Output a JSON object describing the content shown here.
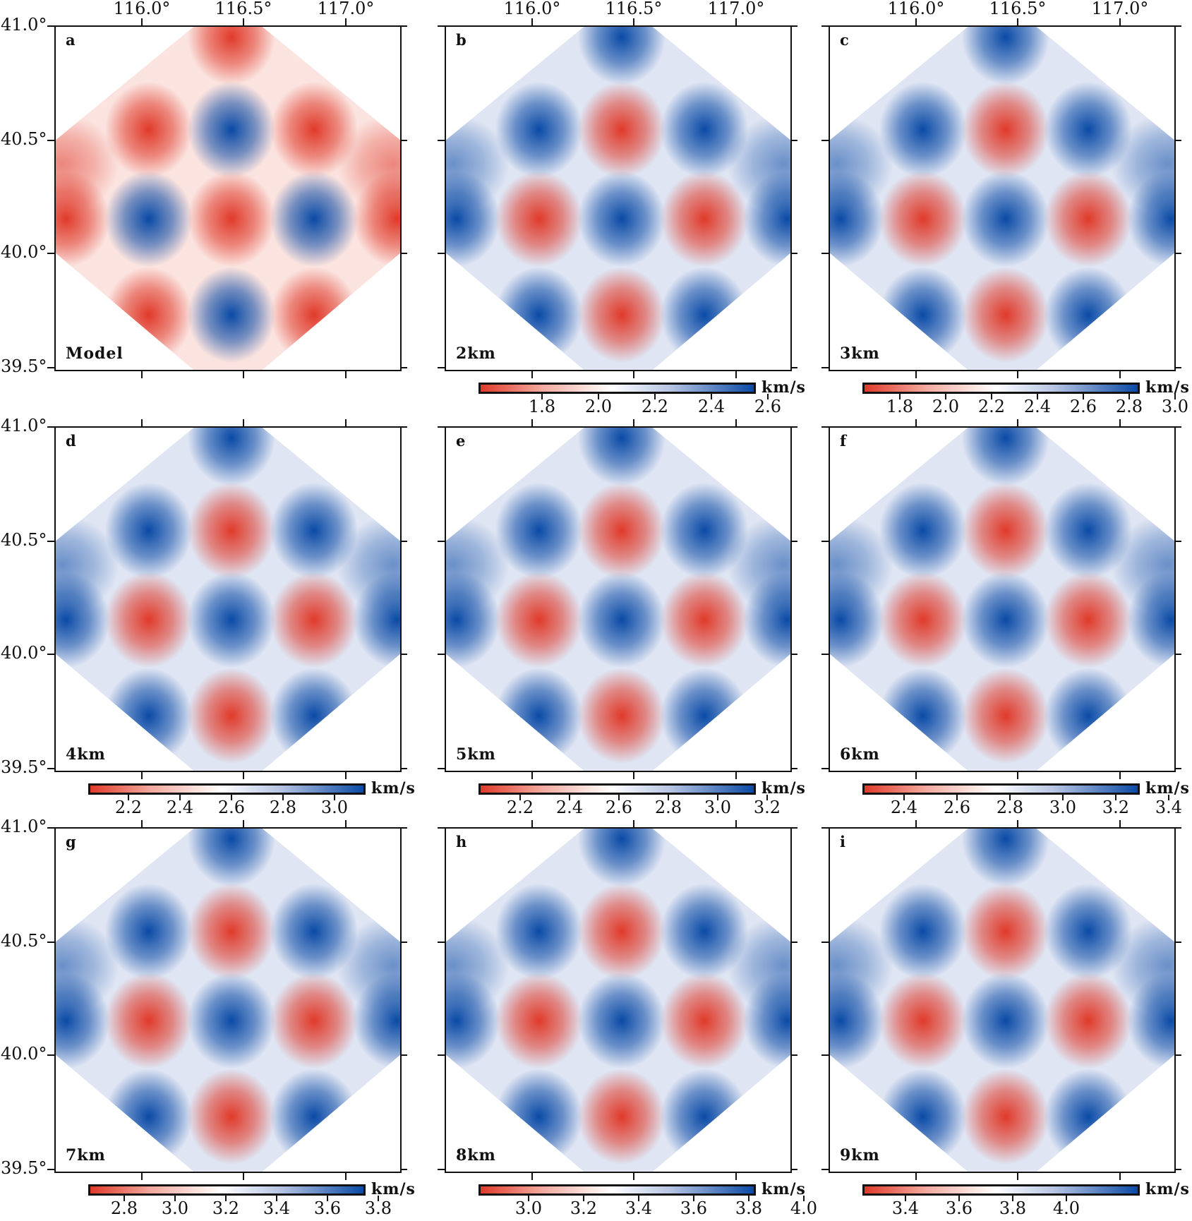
{
  "axes": {
    "lat_labels": [
      "41.0°",
      "40.5°",
      "40.0°",
      "39.5°"
    ],
    "lon_labels": [
      "116.0°",
      "116.5°",
      "117.0°"
    ]
  },
  "colors": {
    "low": "#e03a2a",
    "mid": "#ffffff",
    "high": "#0a4aa6",
    "unit": "km/s"
  },
  "panels": [
    {
      "letter": "a",
      "label": "Model",
      "colorbar": null
    },
    {
      "letter": "b",
      "label": "2km",
      "colorbar": {
        "unit": "km/s",
        "ticks": [
          "1.8",
          "2.0",
          "2.2",
          "2.4",
          "2.6"
        ]
      }
    },
    {
      "letter": "c",
      "label": "3km",
      "colorbar": {
        "unit": "km/s",
        "ticks": [
          "1.8",
          "2.0",
          "2.2",
          "2.4",
          "2.6",
          "2.8",
          "3.0"
        ]
      }
    },
    {
      "letter": "d",
      "label": "4km",
      "colorbar": {
        "unit": "km/s",
        "ticks": [
          "2.2",
          "2.4",
          "2.6",
          "2.8",
          "3.0"
        ]
      }
    },
    {
      "letter": "e",
      "label": "5km",
      "colorbar": {
        "unit": "km/s",
        "ticks": [
          "2.2",
          "2.4",
          "2.6",
          "2.8",
          "3.0",
          "3.2"
        ]
      }
    },
    {
      "letter": "f",
      "label": "6km",
      "colorbar": {
        "unit": "km/s",
        "ticks": [
          "2.4",
          "2.6",
          "2.8",
          "3.0",
          "3.2",
          "3.4"
        ]
      }
    },
    {
      "letter": "g",
      "label": "7km",
      "colorbar": {
        "unit": "km/s",
        "ticks": [
          "2.8",
          "3.0",
          "3.2",
          "3.4",
          "3.6",
          "3.8"
        ]
      }
    },
    {
      "letter": "h",
      "label": "8km",
      "colorbar": {
        "unit": "km/s",
        "ticks": [
          "3.0",
          "3.2",
          "3.4",
          "3.6",
          "3.8",
          "4.0"
        ]
      }
    },
    {
      "letter": "i",
      "label": "9km",
      "colorbar": {
        "unit": "km/s",
        "ticks": [
          "3.4",
          "3.6",
          "3.8",
          "4.0"
        ]
      }
    }
  ]
}
